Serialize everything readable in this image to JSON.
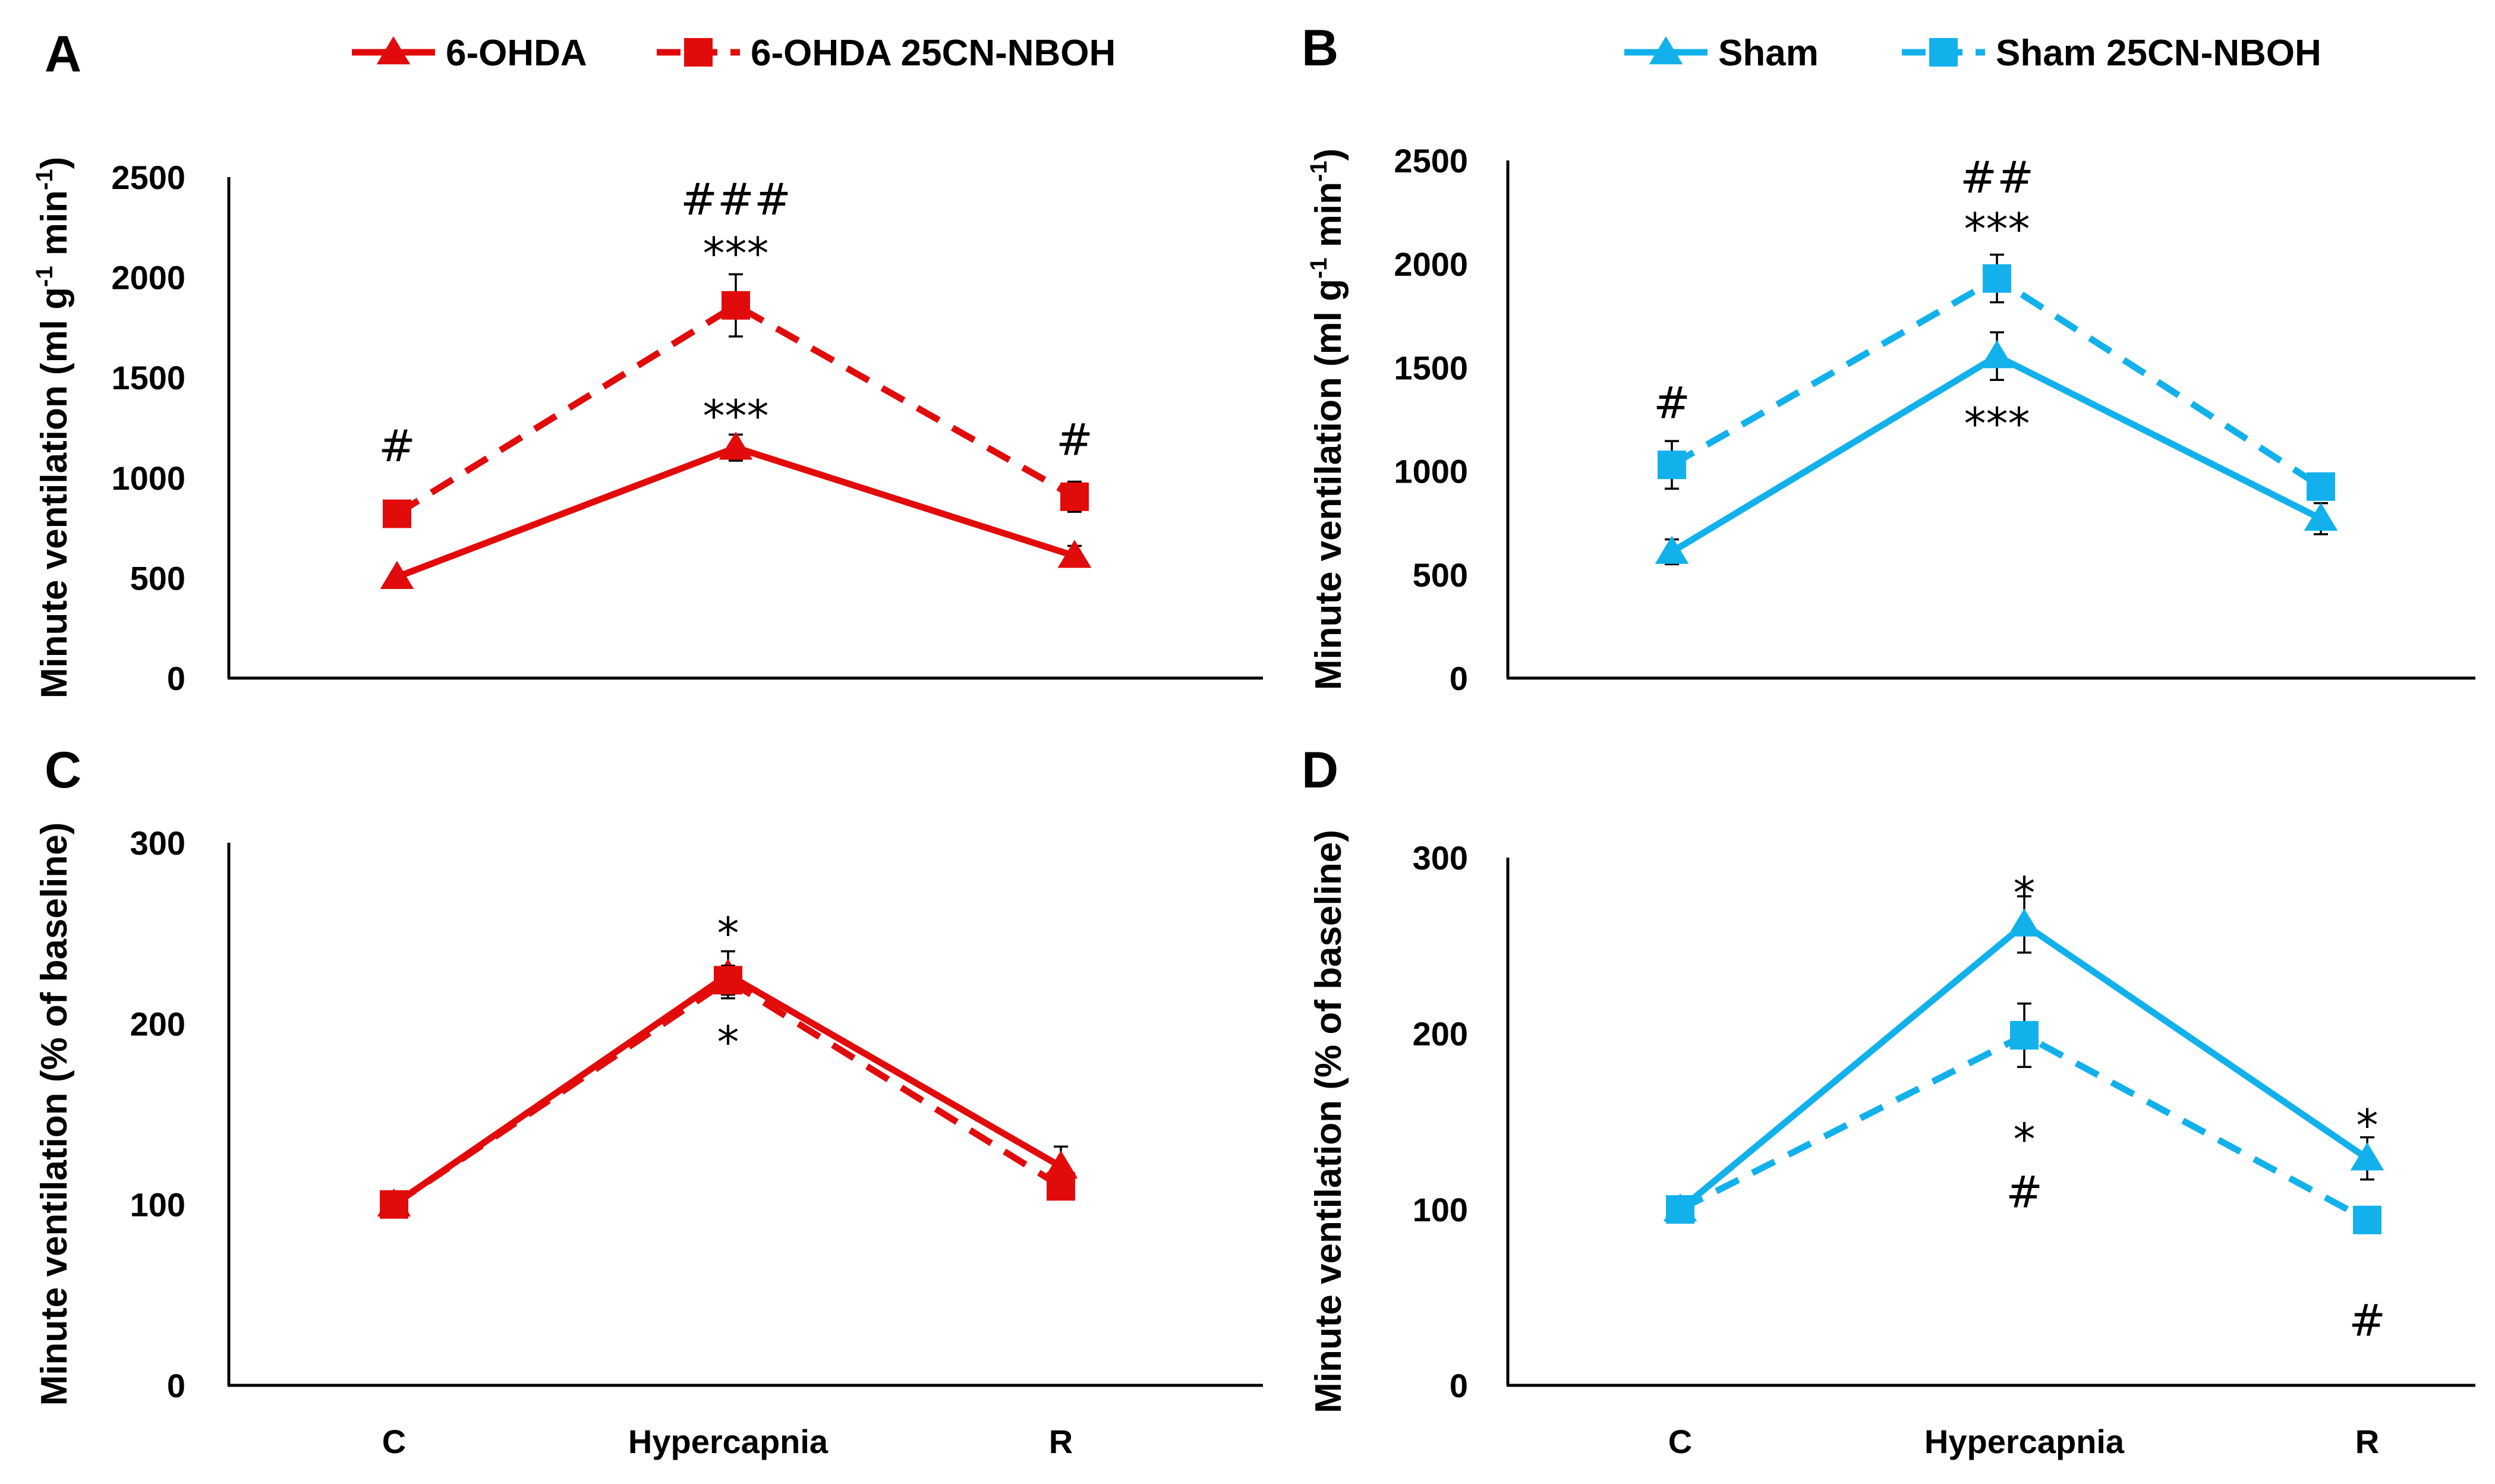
{
  "colors": {
    "red": "#e20b0b",
    "blue": "#12b1eb",
    "axis": "#000000"
  },
  "legend_left": {
    "items": [
      {
        "label": "6-OHDA",
        "style": "solid",
        "marker": "triangle",
        "color": "#e20b0b"
      },
      {
        "label": "6-OHDA 25CN-NBOH",
        "style": "dashed",
        "marker": "square",
        "color": "#e20b0b"
      }
    ]
  },
  "legend_right": {
    "items": [
      {
        "label": "Sham",
        "style": "solid",
        "marker": "triangle",
        "color": "#12b1eb"
      },
      {
        "label": "Sham 25CN-NBOH",
        "style": "dashed",
        "marker": "square",
        "color": "#12b1eb"
      }
    ]
  },
  "x_categories": [
    "C",
    "Hypercapnia",
    "R"
  ],
  "chart_data": [
    {
      "panel": "A",
      "type": "line",
      "ylabel": "Minute ventilation (ml g",
      "ylabel_sup1": "-1",
      "ylabel_mid": " min",
      "ylabel_sup2": "-1",
      "ylabel_end": ")",
      "ylim": [
        0,
        2500
      ],
      "yticks": [
        0,
        500,
        1000,
        1500,
        2000,
        2500
      ],
      "categories": [
        "C",
        "Hypercapnia",
        "R"
      ],
      "show_x_labels": false,
      "series": [
        {
          "name": "6-OHDA",
          "style": "solid",
          "marker": "triangle",
          "color": "#e20b0b",
          "values": [
            505,
            1150,
            610
          ],
          "errors": [
            20,
            65,
            50
          ]
        },
        {
          "name": "6-OHDA 25CN-NBOH",
          "style": "dashed",
          "marker": "square",
          "color": "#e20b0b",
          "values": [
            820,
            1860,
            905
          ],
          "errors": [
            40,
            155,
            75
          ]
        }
      ],
      "annotations": [
        {
          "text": "#",
          "x": "C",
          "y": 1160
        },
        {
          "text": "###",
          "x": "Hypercapnia",
          "y": 2390
        },
        {
          "text": "***",
          "x": "Hypercapnia",
          "y": 2120
        },
        {
          "text": "***",
          "x": "Hypercapnia",
          "y": 1310
        },
        {
          "text": "#",
          "x": "R",
          "y": 1190
        }
      ]
    },
    {
      "panel": "B",
      "type": "line",
      "ylabel": "Minute ventilation (ml g",
      "ylabel_sup1": "-1",
      "ylabel_mid": " min",
      "ylabel_sup2": "-1",
      "ylabel_end": ")",
      "ylim": [
        0,
        2500
      ],
      "yticks": [
        0,
        500,
        1000,
        1500,
        2000,
        2500
      ],
      "categories": [
        "C",
        "Hypercapnia",
        "R"
      ],
      "show_x_labels": false,
      "series": [
        {
          "name": "Sham",
          "style": "solid",
          "marker": "triangle",
          "color": "#12b1eb",
          "values": [
            610,
            1555,
            770
          ],
          "errors": [
            60,
            115,
            75
          ]
        },
        {
          "name": "Sham 25CN-NBOH",
          "style": "dashed",
          "marker": "square",
          "color": "#12b1eb",
          "values": [
            1030,
            1930,
            925
          ],
          "errors": [
            115,
            115,
            35
          ]
        }
      ],
      "annotations": [
        {
          "text": "#",
          "x": "C",
          "y": 1330
        },
        {
          "text": "##",
          "x": "Hypercapnia",
          "y": 2420
        },
        {
          "text": "***",
          "x": "Hypercapnia",
          "y": 2170
        },
        {
          "text": "***",
          "x": "Hypercapnia",
          "y": 1230
        }
      ]
    },
    {
      "panel": "C",
      "type": "line",
      "ylabel": "Minute ventilation (% of baseline)",
      "ylim": [
        0,
        300
      ],
      "yticks": [
        0,
        100,
        200,
        300
      ],
      "categories": [
        "C",
        "Hypercapnia",
        "R"
      ],
      "show_x_labels": true,
      "series": [
        {
          "name": "6-OHDA",
          "style": "solid",
          "marker": "triangle",
          "color": "#e20b0b",
          "values": [
            100,
            227,
            121
          ],
          "errors": [
            0,
            13,
            11
          ]
        },
        {
          "name": "6-OHDA 25CN-NBOH",
          "style": "dashed",
          "marker": "square",
          "color": "#e20b0b",
          "values": [
            100,
            224,
            110
          ],
          "errors": [
            0,
            8,
            5
          ]
        }
      ],
      "annotations": [
        {
          "text": "*",
          "x": "Hypercapnia",
          "y": 250
        },
        {
          "text": "*",
          "x": "Hypercapnia",
          "y": 190
        }
      ]
    },
    {
      "panel": "D",
      "type": "line",
      "ylabel": "Minute ventilation (% of baseline)",
      "ylim": [
        0,
        300
      ],
      "yticks": [
        0,
        100,
        200,
        300
      ],
      "categories": [
        "C",
        "Hypercapnia",
        "R"
      ],
      "show_x_labels": true,
      "series": [
        {
          "name": "Sham",
          "style": "solid",
          "marker": "triangle",
          "color": "#12b1eb",
          "values": [
            100,
            262,
            129
          ],
          "errors": [
            0,
            16,
            12
          ]
        },
        {
          "name": "Sham 25CN-NBOH",
          "style": "dashed",
          "marker": "square",
          "color": "#12b1eb",
          "values": [
            100,
            199,
            94
          ],
          "errors": [
            0,
            18,
            6
          ]
        }
      ],
      "annotations": [
        {
          "text": "*",
          "x": "Hypercapnia",
          "y": 280
        },
        {
          "text": "*",
          "x": "Hypercapnia",
          "y": 140
        },
        {
          "text": "#",
          "x": "Hypercapnia",
          "y": 110
        },
        {
          "text": "*",
          "x": "R",
          "y": 148
        },
        {
          "text": "#",
          "x": "R",
          "y": 37
        }
      ]
    }
  ]
}
